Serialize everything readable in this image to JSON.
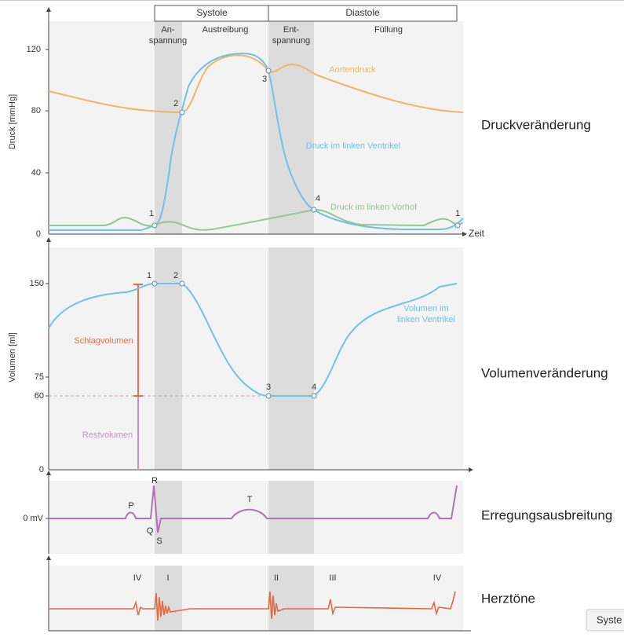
{
  "header": {
    "systole": "Systole",
    "diastole": "Diastole"
  },
  "phases": {
    "anspannung": [
      "An-",
      "spannung"
    ],
    "austreibung": "Austreibung",
    "entspannung": [
      "Ent-",
      "spannung"
    ],
    "fuellung": "Füllung"
  },
  "pressure": {
    "axis_title": "Druck [mmHg]",
    "ticks": [
      "120",
      "80",
      "40",
      "0"
    ],
    "x_label": "Zeit",
    "curves": {
      "aorta": "Aortendruck",
      "ventricle": "Druck im linken Ventrikel",
      "atrium": "Druck im linken Vorhof"
    },
    "points": [
      "1",
      "2",
      "3",
      "4",
      "1"
    ],
    "side_label": "Druckveränderung"
  },
  "volume": {
    "axis_title": "Volumen [ml]",
    "ticks": [
      "150",
      "75",
      "60",
      "0"
    ],
    "curve_label": [
      "Volumen im",
      "linken Ventrikel"
    ],
    "stroke": "Schlagvolumen",
    "residual": "Restvolumen",
    "points": [
      "1",
      "2",
      "3",
      "4"
    ],
    "side_label": "Volumenveränderung"
  },
  "ecg": {
    "tick": "0 mV",
    "waves": [
      "P",
      "R",
      "Q",
      "S",
      "T"
    ],
    "side_label": "Erregungsausbreitung"
  },
  "sounds": {
    "labels": [
      "IV",
      "I",
      "II",
      "III",
      "IV"
    ],
    "side_label": "Herztöne"
  },
  "button": "Syste"
}
